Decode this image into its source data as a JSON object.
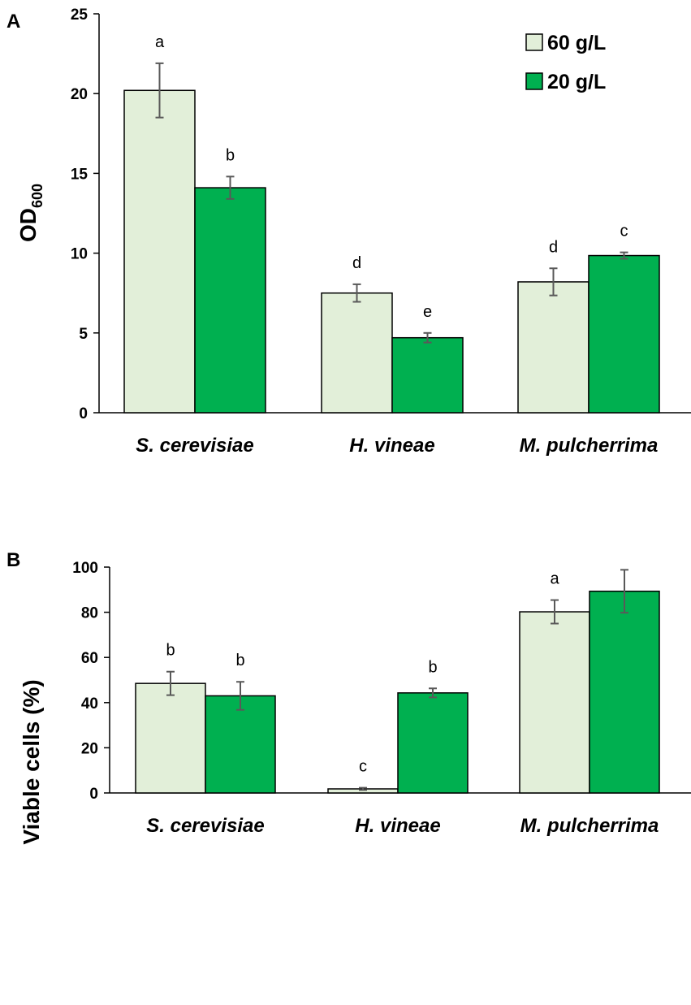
{
  "chart_data": [
    {
      "panel_label": "A",
      "type": "bar",
      "title": "",
      "ylabel": "OD",
      "ylabel_subscript": "600",
      "xlabel": "",
      "ylim": [
        0,
        25
      ],
      "yticks": [
        "0",
        "5",
        "10",
        "15",
        "20",
        "25"
      ],
      "categories": [
        "S. cerevisiae",
        "H. vineae",
        "M. pulcherrima"
      ],
      "series": [
        {
          "name": "60 g/L",
          "color": "#e2efd9",
          "values": [
            20.2,
            7.5,
            8.2
          ],
          "errors": [
            1.7,
            0.55,
            0.85
          ],
          "labels": [
            "a",
            "d",
            "d"
          ]
        },
        {
          "name": "20 g/L",
          "color": "#00b050",
          "values": [
            14.1,
            4.7,
            9.85
          ],
          "errors": [
            0.7,
            0.3,
            0.2
          ],
          "labels": [
            "b",
            "e",
            "c"
          ]
        }
      ],
      "legend": {
        "position": "top-right",
        "entries": [
          "60 g/L",
          "20 g/L"
        ]
      }
    },
    {
      "panel_label": "B",
      "type": "bar",
      "title": "",
      "ylabel": "Viable cells (%)",
      "xlabel": "",
      "ylim": [
        0,
        100
      ],
      "yticks": [
        "0",
        "20",
        "40",
        "60",
        "80",
        "100"
      ],
      "categories": [
        "S. cerevisiae",
        "H. vineae",
        "M. pulcherrima"
      ],
      "series": [
        {
          "name": "60 g/L",
          "color": "#e2efd9",
          "values": [
            48.5,
            1.8,
            80.2
          ],
          "errors": [
            5.2,
            0.5,
            5.2
          ],
          "labels": [
            "b",
            "c",
            "a"
          ]
        },
        {
          "name": "20 g/L",
          "color": "#00b050",
          "values": [
            43.0,
            44.3,
            89.3
          ],
          "errors": [
            6.2,
            2.0,
            9.5
          ],
          "labels": [
            "b",
            "b",
            ""
          ]
        }
      ]
    }
  ]
}
